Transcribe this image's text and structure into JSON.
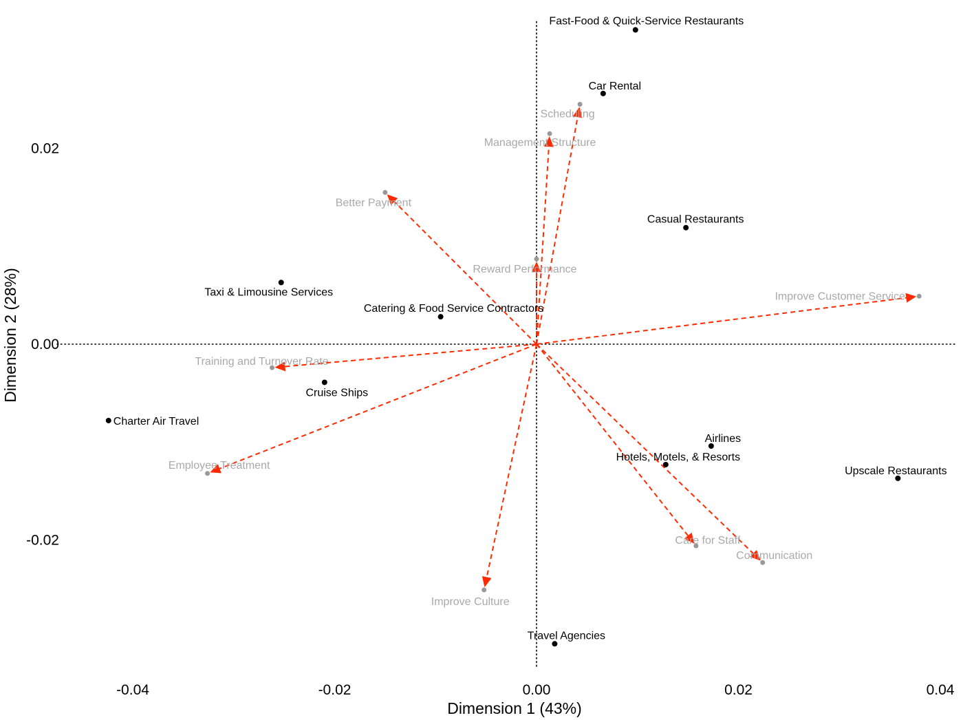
{
  "chart_data": {
    "type": "scatter",
    "title": "",
    "xlabel": "Dimension 1 (43%)",
    "ylabel": "Dimension 2 (28%)",
    "xlim": [
      -0.0475,
      0.0415
    ],
    "ylim": [
      -0.0335,
      0.0335
    ],
    "x_ticks": [
      -0.04,
      -0.02,
      0.0,
      0.02,
      0.04
    ],
    "x_tick_labels": [
      "-0.04",
      "-0.02",
      "0.00",
      "0.02",
      "0.04"
    ],
    "y_ticks": [
      -0.02,
      0.0,
      0.02
    ],
    "y_tick_labels": [
      "-0.02",
      "0.00",
      "0.02"
    ],
    "grid": false,
    "reference_lines": {
      "x": 0,
      "y": 0,
      "style": "dotted"
    },
    "colors": {
      "row_points": "#000000",
      "column_points": "#999999",
      "column_labels": "#a9a9a9",
      "arrows": "#ff2a00"
    },
    "row_points": [
      {
        "label": "Fast-Food & Quick-Service Restaurants",
        "x": 0.0098,
        "y": 0.0321
      },
      {
        "label": "Car Rental",
        "x": 0.0066,
        "y": 0.0256
      },
      {
        "label": "Casual Restaurants",
        "x": 0.0148,
        "y": 0.0119
      },
      {
        "label": "Taxi & Limousine Services",
        "x": -0.0253,
        "y": 0.0063
      },
      {
        "label": "Catering & Food Service Contractors",
        "x": -0.0095,
        "y": 0.0028
      },
      {
        "label": "Cruise Ships",
        "x": -0.021,
        "y": -0.0039
      },
      {
        "label": "Charter Air Travel",
        "x": -0.0424,
        "y": -0.0078
      },
      {
        "label": "Airlines",
        "x": 0.0173,
        "y": -0.0104
      },
      {
        "label": "Hotels, Motels, & Resorts",
        "x": 0.0128,
        "y": -0.0123
      },
      {
        "label": "Upscale Restaurants",
        "x": 0.0358,
        "y": -0.0137
      },
      {
        "label": "Travel Agencies",
        "x": 0.0018,
        "y": -0.0306
      }
    ],
    "column_points": [
      {
        "label": "Scheduling",
        "x": 0.0043,
        "y": 0.0245
      },
      {
        "label": "Management Structure",
        "x": 0.0013,
        "y": 0.0215
      },
      {
        "label": "Better Payment",
        "x": -0.015,
        "y": 0.0155
      },
      {
        "label": "Reward Performance",
        "x": 0.0,
        "y": 0.0087
      },
      {
        "label": "Improve Customer Service",
        "x": 0.0379,
        "y": 0.0049
      },
      {
        "label": "Training and Turnover Rate",
        "x": -0.0262,
        "y": -0.0024
      },
      {
        "label": "Employee Treatment",
        "x": -0.0326,
        "y": -0.0132
      },
      {
        "label": "Care for Staff",
        "x": 0.0158,
        "y": -0.0206
      },
      {
        "label": "Communication",
        "x": 0.0224,
        "y": -0.0223
      },
      {
        "label": "Improve Culture",
        "x": -0.0052,
        "y": -0.0251
      }
    ]
  }
}
